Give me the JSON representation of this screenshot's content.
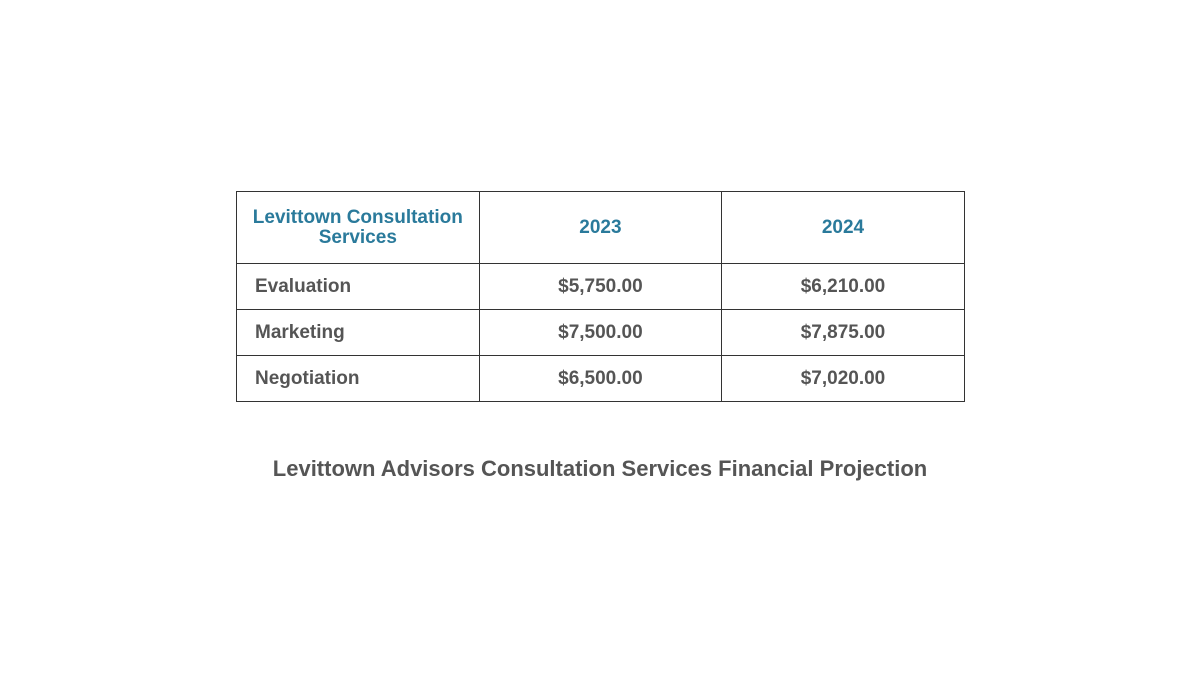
{
  "table": {
    "headers": [
      "Levittown Consultation Services",
      "2023",
      "2024"
    ],
    "rows": [
      {
        "label": "Evaluation",
        "y2023": "$5,750.00",
        "y2024": "$6,210.00"
      },
      {
        "label": "Marketing",
        "y2023": "$7,500.00",
        "y2024": "$7,875.00"
      },
      {
        "label": "Negotiation",
        "y2023": "$6,500.00",
        "y2024": "$7,020.00"
      }
    ]
  },
  "caption": "Levittown Advisors Consultation Services Financial Projection",
  "colors": {
    "header_text": "#2a7a9b",
    "body_text": "#555555",
    "border": "#333333"
  }
}
